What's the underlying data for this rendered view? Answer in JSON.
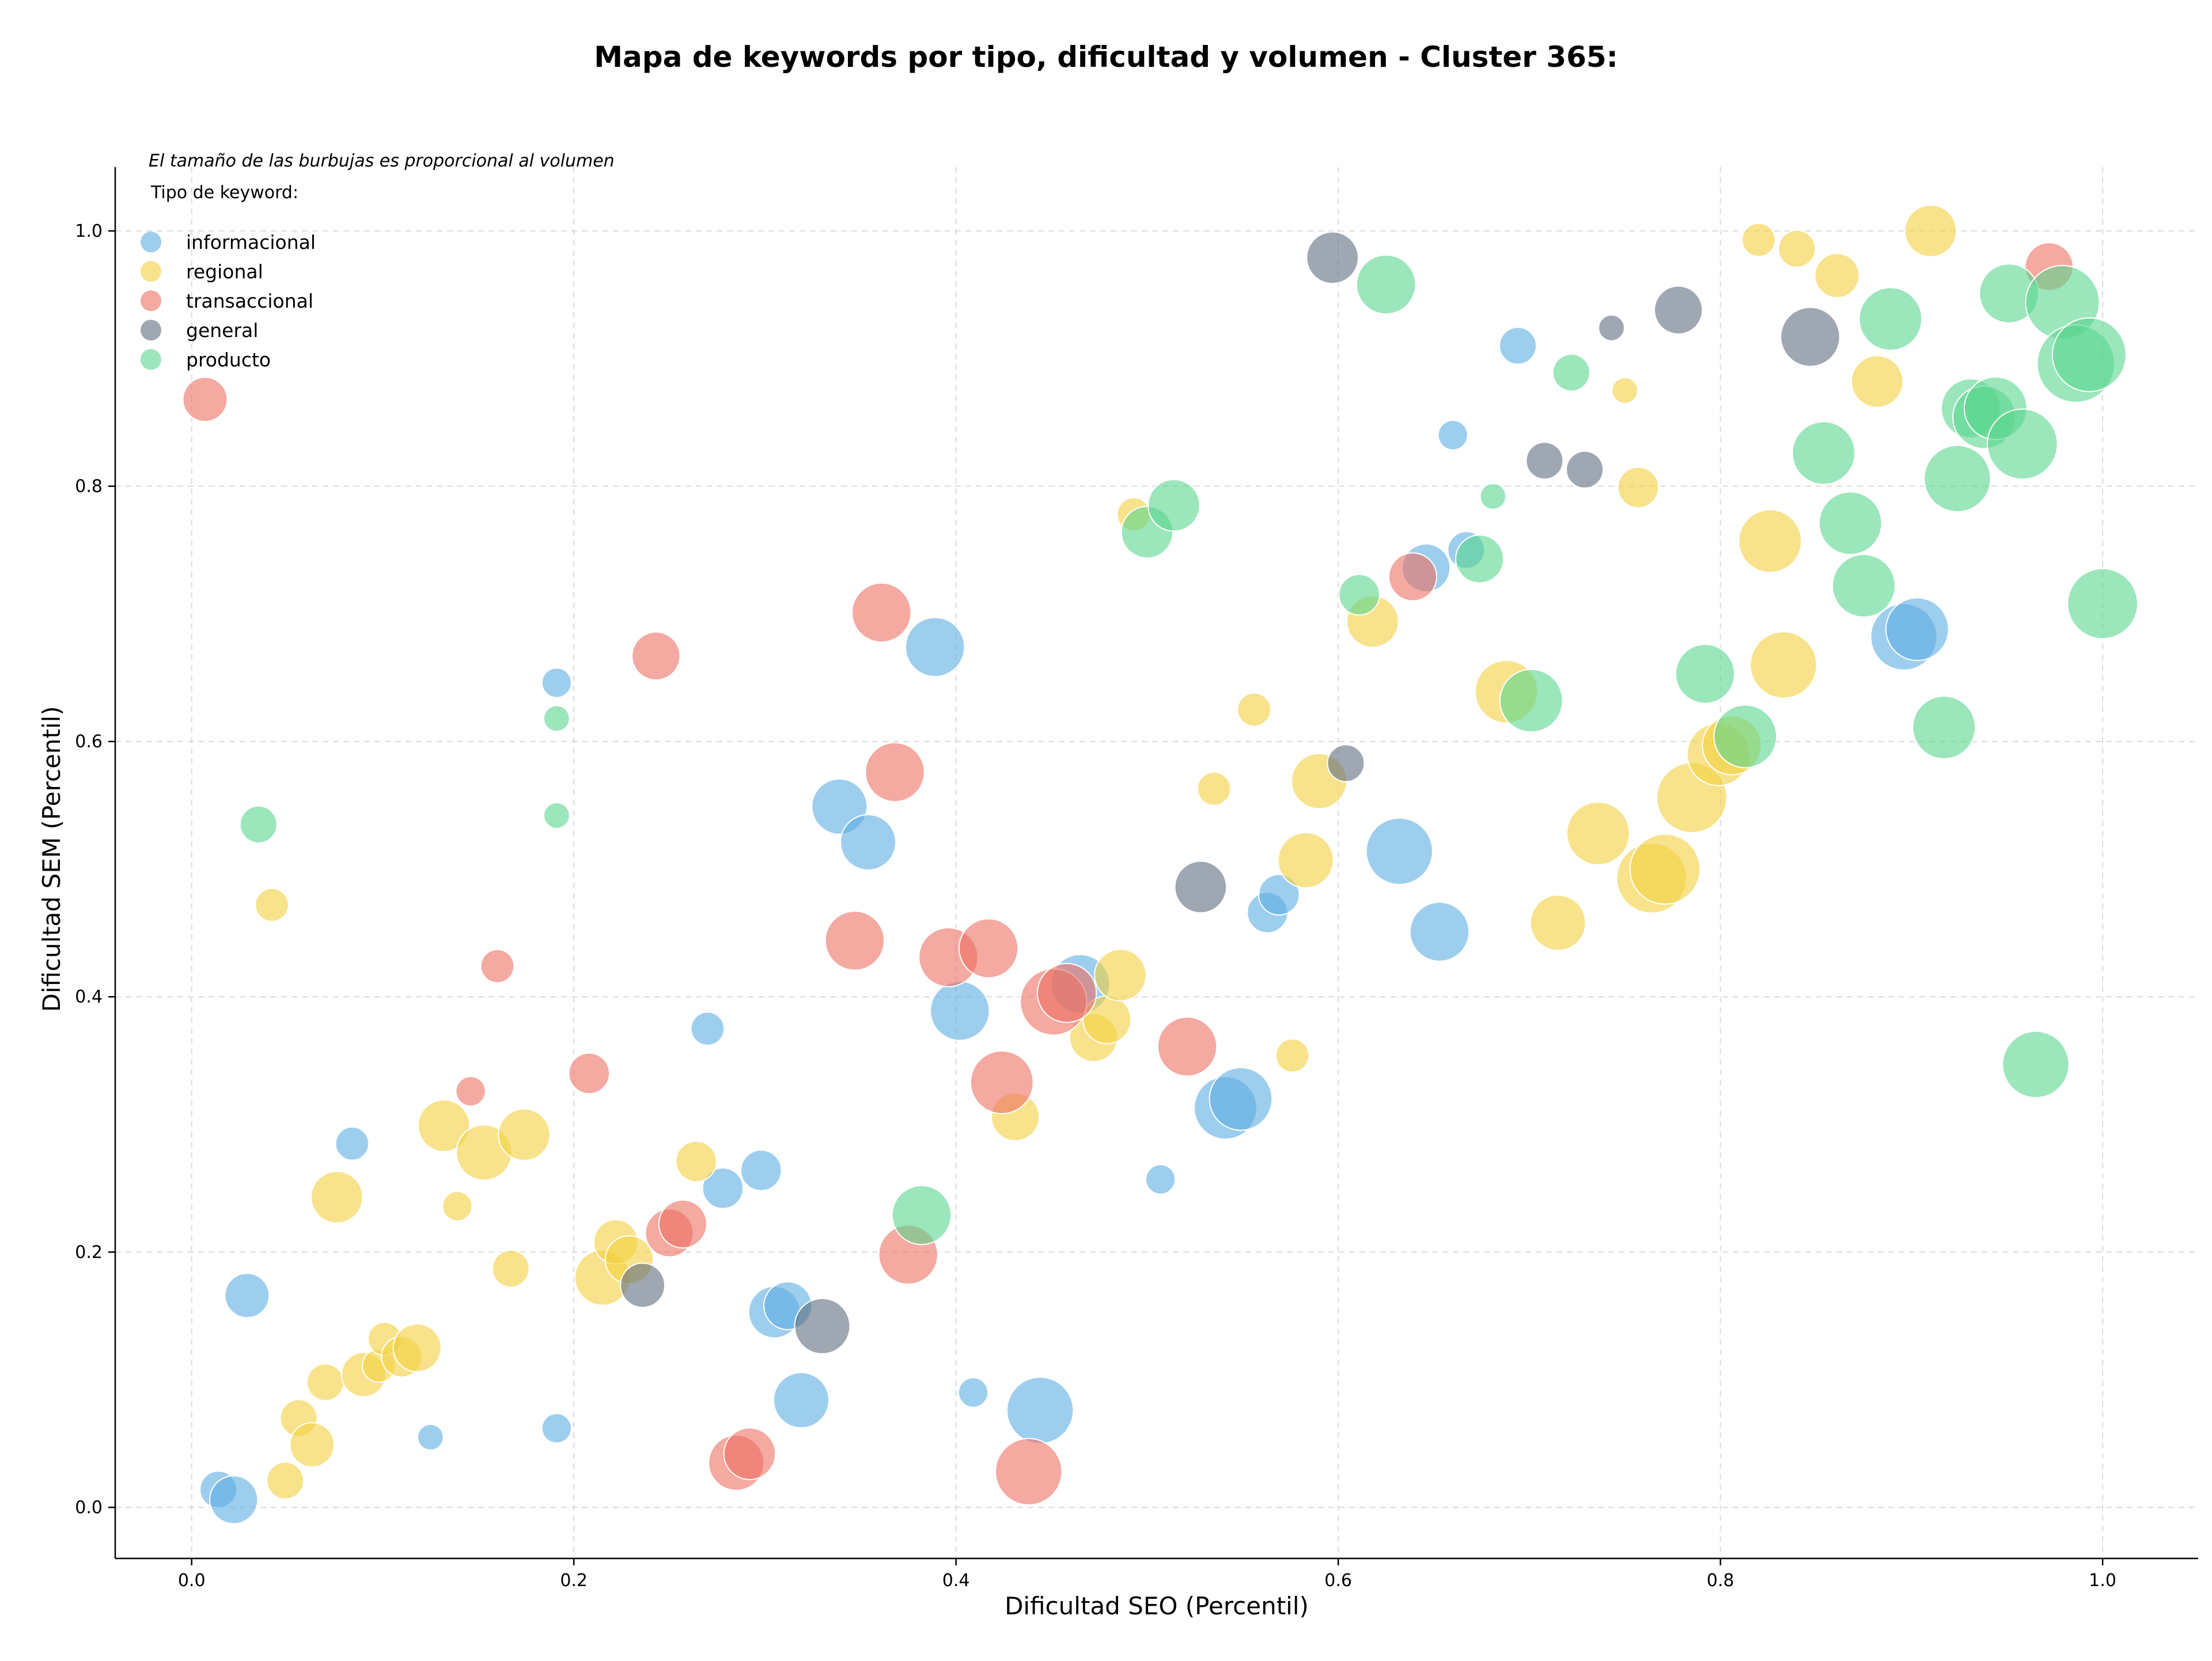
{
  "chart_data": {
    "type": "scatter",
    "title": "Mapa de keywords por tipo, dificultad y volumen - Cluster 365:",
    "xlabel": "Dificultad SEO (Percentil)",
    "ylabel": "Dificultad SEM (Percentil)",
    "note": "El tamaño de las burbujas es proporcional al volumen",
    "legend_title": "Tipo de keyword:",
    "legend_position": "top-left",
    "grid": true,
    "xlim": [
      -0.04,
      1.05
    ],
    "ylim": [
      -0.04,
      1.05
    ],
    "x_ticks": [
      "0.0",
      "0.2",
      "0.4",
      "0.6",
      "0.8",
      "1.0"
    ],
    "y_ticks": [
      "0.0",
      "0.2",
      "0.4",
      "0.6",
      "0.8",
      "1.0"
    ],
    "series": [
      {
        "name": "informacional",
        "color": "#5DADE2",
        "points": [
          [
            0.014,
            0.014,
            20
          ],
          [
            0.022,
            0.006,
            26
          ],
          [
            0.029,
            0.166,
            24
          ],
          [
            0.084,
            0.285,
            18
          ],
          [
            0.125,
            0.055,
            14
          ],
          [
            0.191,
            0.062,
            16
          ],
          [
            0.191,
            0.646,
            16
          ],
          [
            0.27,
            0.375,
            18
          ],
          [
            0.278,
            0.25,
            22
          ],
          [
            0.298,
            0.264,
            22
          ],
          [
            0.305,
            0.153,
            28
          ],
          [
            0.312,
            0.158,
            26
          ],
          [
            0.319,
            0.084,
            30
          ],
          [
            0.339,
            0.549,
            30
          ],
          [
            0.354,
            0.521,
            30
          ],
          [
            0.389,
            0.674,
            32
          ],
          [
            0.402,
            0.389,
            32
          ],
          [
            0.409,
            0.09,
            16
          ],
          [
            0.444,
            0.076,
            36
          ],
          [
            0.465,
            0.41,
            32
          ],
          [
            0.507,
            0.257,
            16
          ],
          [
            0.541,
            0.313,
            34
          ],
          [
            0.549,
            0.32,
            34
          ],
          [
            0.563,
            0.466,
            22
          ],
          [
            0.569,
            0.48,
            22
          ],
          [
            0.632,
            0.514,
            36
          ],
          [
            0.646,
            0.736,
            26
          ],
          [
            0.653,
            0.451,
            32
          ],
          [
            0.66,
            0.84,
            16
          ],
          [
            0.667,
            0.75,
            20
          ],
          [
            0.694,
            0.91,
            20
          ],
          [
            0.896,
            0.682,
            36
          ],
          [
            0.903,
            0.688,
            34
          ]
        ]
      },
      {
        "name": "regional",
        "color": "#F4D03F",
        "points": [
          [
            0.042,
            0.472,
            18
          ],
          [
            0.049,
            0.021,
            20
          ],
          [
            0.056,
            0.07,
            20
          ],
          [
            0.063,
            0.049,
            24
          ],
          [
            0.07,
            0.098,
            20
          ],
          [
            0.076,
            0.243,
            28
          ],
          [
            0.09,
            0.104,
            24
          ],
          [
            0.098,
            0.111,
            18
          ],
          [
            0.101,
            0.132,
            18
          ],
          [
            0.11,
            0.118,
            22
          ],
          [
            0.118,
            0.125,
            26
          ],
          [
            0.132,
            0.299,
            28
          ],
          [
            0.139,
            0.236,
            16
          ],
          [
            0.153,
            0.278,
            30
          ],
          [
            0.167,
            0.187,
            20
          ],
          [
            0.174,
            0.292,
            28
          ],
          [
            0.215,
            0.18,
            30
          ],
          [
            0.222,
            0.208,
            24
          ],
          [
            0.229,
            0.194,
            26
          ],
          [
            0.264,
            0.271,
            22
          ],
          [
            0.431,
            0.306,
            26
          ],
          [
            0.472,
            0.368,
            26
          ],
          [
            0.479,
            0.382,
            26
          ],
          [
            0.486,
            0.417,
            28
          ],
          [
            0.493,
            0.778,
            18
          ],
          [
            0.535,
            0.563,
            18
          ],
          [
            0.556,
            0.625,
            18
          ],
          [
            0.576,
            0.354,
            18
          ],
          [
            0.583,
            0.507,
            30
          ],
          [
            0.59,
            0.569,
            30
          ],
          [
            0.618,
            0.694,
            28
          ],
          [
            0.688,
            0.639,
            34
          ],
          [
            0.715,
            0.458,
            30
          ],
          [
            0.736,
            0.528,
            34
          ],
          [
            0.75,
            0.875,
            14
          ],
          [
            0.757,
            0.799,
            22
          ],
          [
            0.764,
            0.493,
            38
          ],
          [
            0.771,
            0.5,
            38
          ],
          [
            0.785,
            0.556,
            38
          ],
          [
            0.799,
            0.59,
            34
          ],
          [
            0.806,
            0.597,
            32
          ],
          [
            0.82,
            0.993,
            18
          ],
          [
            0.826,
            0.757,
            34
          ],
          [
            0.833,
            0.66,
            36
          ],
          [
            0.84,
            0.986,
            20
          ],
          [
            0.861,
            0.965,
            24
          ],
          [
            0.882,
            0.882,
            28
          ],
          [
            0.91,
            1.0,
            28
          ]
        ]
      },
      {
        "name": "transaccional",
        "color": "#EC7063",
        "points": [
          [
            0.007,
            0.868,
            24
          ],
          [
            0.146,
            0.326,
            16
          ],
          [
            0.16,
            0.424,
            18
          ],
          [
            0.208,
            0.34,
            22
          ],
          [
            0.243,
            0.667,
            26
          ],
          [
            0.25,
            0.215,
            26
          ],
          [
            0.257,
            0.222,
            26
          ],
          [
            0.285,
            0.035,
            30
          ],
          [
            0.292,
            0.042,
            28
          ],
          [
            0.347,
            0.444,
            32
          ],
          [
            0.361,
            0.701,
            32
          ],
          [
            0.368,
            0.576,
            32
          ],
          [
            0.375,
            0.198,
            32
          ],
          [
            0.396,
            0.431,
            32
          ],
          [
            0.417,
            0.438,
            32
          ],
          [
            0.424,
            0.333,
            34
          ],
          [
            0.438,
            0.028,
            36
          ],
          [
            0.451,
            0.396,
            36
          ],
          [
            0.458,
            0.403,
            32
          ],
          [
            0.521,
            0.361,
            32
          ],
          [
            0.639,
            0.729,
            26
          ],
          [
            0.972,
            0.972,
            26
          ]
        ]
      },
      {
        "name": "general",
        "color": "#5D6D7E",
        "points": [
          [
            0.236,
            0.174,
            24
          ],
          [
            0.33,
            0.142,
            30
          ],
          [
            0.528,
            0.486,
            28
          ],
          [
            0.597,
            0.979,
            28
          ],
          [
            0.604,
            0.583,
            20
          ],
          [
            0.708,
            0.82,
            20
          ],
          [
            0.729,
            0.813,
            20
          ],
          [
            0.743,
            0.924,
            14
          ],
          [
            0.778,
            0.938,
            26
          ],
          [
            0.847,
            0.917,
            32
          ]
        ]
      },
      {
        "name": "producto",
        "color": "#58D68D",
        "points": [
          [
            0.035,
            0.535,
            20
          ],
          [
            0.191,
            0.542,
            14
          ],
          [
            0.191,
            0.618,
            14
          ],
          [
            0.382,
            0.229,
            32
          ],
          [
            0.5,
            0.764,
            28
          ],
          [
            0.514,
            0.785,
            28
          ],
          [
            0.611,
            0.715,
            22
          ],
          [
            0.625,
            0.958,
            32
          ],
          [
            0.674,
            0.743,
            26
          ],
          [
            0.681,
            0.792,
            14
          ],
          [
            0.701,
            0.632,
            34
          ],
          [
            0.722,
            0.889,
            20
          ],
          [
            0.792,
            0.653,
            32
          ],
          [
            0.813,
            0.604,
            34
          ],
          [
            0.854,
            0.826,
            34
          ],
          [
            0.868,
            0.771,
            34
          ],
          [
            0.875,
            0.722,
            34
          ],
          [
            0.889,
            0.931,
            34
          ],
          [
            0.917,
            0.611,
            34
          ],
          [
            0.924,
            0.806,
            36
          ],
          [
            0.931,
            0.861,
            32
          ],
          [
            0.938,
            0.854,
            34
          ],
          [
            0.944,
            0.861,
            34
          ],
          [
            0.951,
            0.951,
            32
          ],
          [
            0.958,
            0.833,
            38
          ],
          [
            0.965,
            0.347,
            36
          ],
          [
            0.979,
            0.944,
            40
          ],
          [
            0.986,
            0.896,
            42
          ],
          [
            0.993,
            0.903,
            40
          ],
          [
            1.0,
            0.708,
            38
          ]
        ]
      }
    ]
  }
}
